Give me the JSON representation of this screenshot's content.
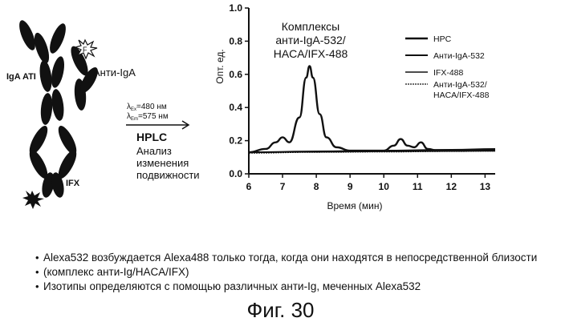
{
  "diagram": {
    "antibody_label": "IgA ATI",
    "anti_iga_label": "Анти-IgA",
    "ifx_label": "IFX",
    "fluor_label": "F",
    "ex_lambda": "λ",
    "ex_sub": "Ex",
    "ex_value": "=480 нм",
    "em_lambda": "λ",
    "em_sub": "Em",
    "em_value": "=575 нм",
    "method_label": "HPLC",
    "analysis_lines": [
      "Анализ",
      "изменения",
      "подвижности"
    ]
  },
  "chart_data": {
    "type": "line",
    "title": "",
    "xlabel": "Время (мин)",
    "ylabel": "Опт. ед.",
    "xlim": [
      6,
      13.3
    ],
    "ylim": [
      0,
      1.0
    ],
    "xticks": [
      6,
      7,
      8,
      9,
      10,
      11,
      12,
      13
    ],
    "yticks": [
      0.0,
      0.2,
      0.4,
      0.6,
      0.8,
      1.0
    ],
    "ytick_labels": [
      "0.0",
      "0.2",
      "0.4",
      "0.6",
      "0.8",
      "1.0"
    ],
    "annotation_lines": [
      "Комплексы",
      "анти-IgA-532/",
      "HACA/IFX-488"
    ],
    "legend_position": "top-right",
    "legend": [
      "HPC",
      "Анти-IgA-532",
      "IFX-488",
      "Анти-IgA-532/\nHACA/IFX-488"
    ],
    "series": [
      {
        "name": "HPC",
        "x": [
          6.0,
          6.5,
          6.8,
          7.0,
          7.2,
          7.5,
          7.7,
          7.8,
          7.9,
          8.1,
          8.3,
          8.6,
          9.0,
          9.5,
          10.0,
          10.3,
          10.5,
          10.7,
          10.9,
          11.1,
          11.3,
          11.6,
          12.0,
          12.5,
          13.0,
          13.3
        ],
        "y": [
          0.13,
          0.15,
          0.19,
          0.22,
          0.19,
          0.34,
          0.58,
          0.65,
          0.58,
          0.36,
          0.22,
          0.16,
          0.14,
          0.14,
          0.14,
          0.17,
          0.21,
          0.17,
          0.16,
          0.19,
          0.15,
          0.14,
          0.14,
          0.14,
          0.14,
          0.14
        ]
      },
      {
        "name": "Анти-IgA-532",
        "x": [
          6.0,
          8.0,
          10.0,
          12.0,
          13.3
        ],
        "y": [
          0.13,
          0.135,
          0.14,
          0.145,
          0.15
        ]
      },
      {
        "name": "IFX-488",
        "x": [
          6.0,
          8.0,
          10.0,
          12.0,
          13.3
        ],
        "y": [
          0.13,
          0.132,
          0.135,
          0.137,
          0.14
        ]
      },
      {
        "name": "Анти-IgA-532/\nHACA/IFX-488",
        "x": [
          6.0,
          8.0,
          10.0,
          12.0,
          13.3
        ],
        "y": [
          0.125,
          0.13,
          0.132,
          0.135,
          0.137
        ]
      }
    ]
  },
  "notes": [
    "Alexa532 возбуждается Alexa488 только тогда, когда они находятся в непосредственной близости",
    "(комплекс анти-Ig/HACA/IFX)",
    "Изотипы определяются с помощью различных анти-Ig, меченных Alexa532"
  ],
  "caption": "Фиг. 30"
}
